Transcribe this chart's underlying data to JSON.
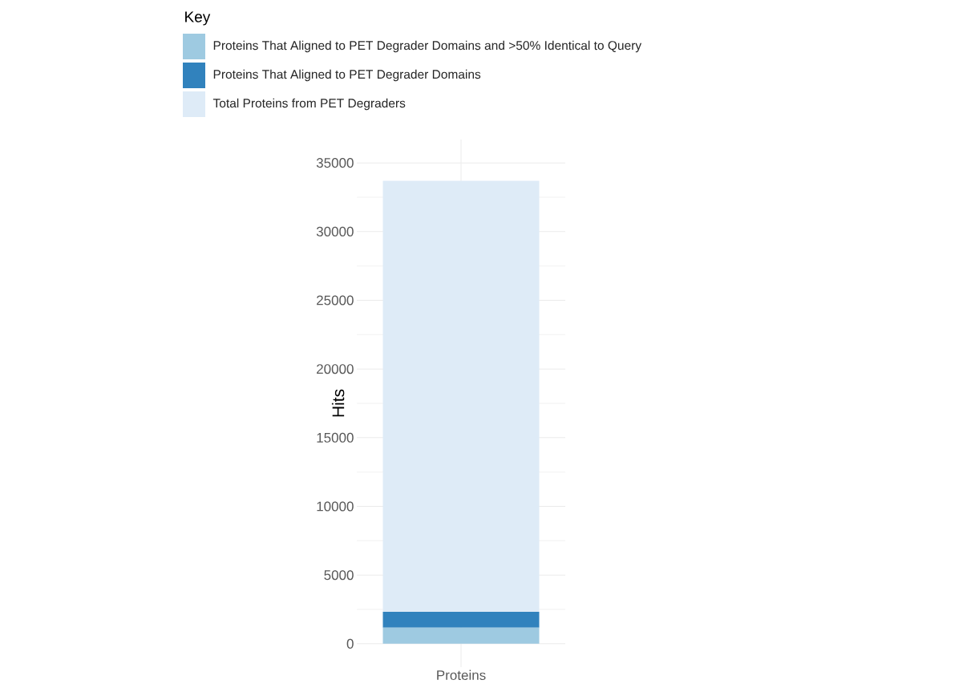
{
  "chart_data": {
    "type": "bar",
    "stacked": true,
    "categories": [
      "Proteins"
    ],
    "series": [
      {
        "name": "Proteins That Aligned to PET Degrader Domains and >50% Identical to Query",
        "color": "#9ecae1",
        "values": [
          1170
        ]
      },
      {
        "name": "Proteins That Aligned to PET Degrader Domains",
        "color": "#3182bd",
        "values": [
          1160
        ]
      },
      {
        "name": "Total Proteins from PET Degraders",
        "color": "#deebf7",
        "values": [
          31370
        ]
      }
    ],
    "ylabel": "Hits",
    "legend_title": "Key",
    "legend": "top left",
    "grid": true,
    "ylim": [
      -1700,
      36700
    ],
    "yticks": [
      0,
      5000,
      10000,
      15000,
      20000,
      25000,
      30000,
      35000
    ]
  }
}
